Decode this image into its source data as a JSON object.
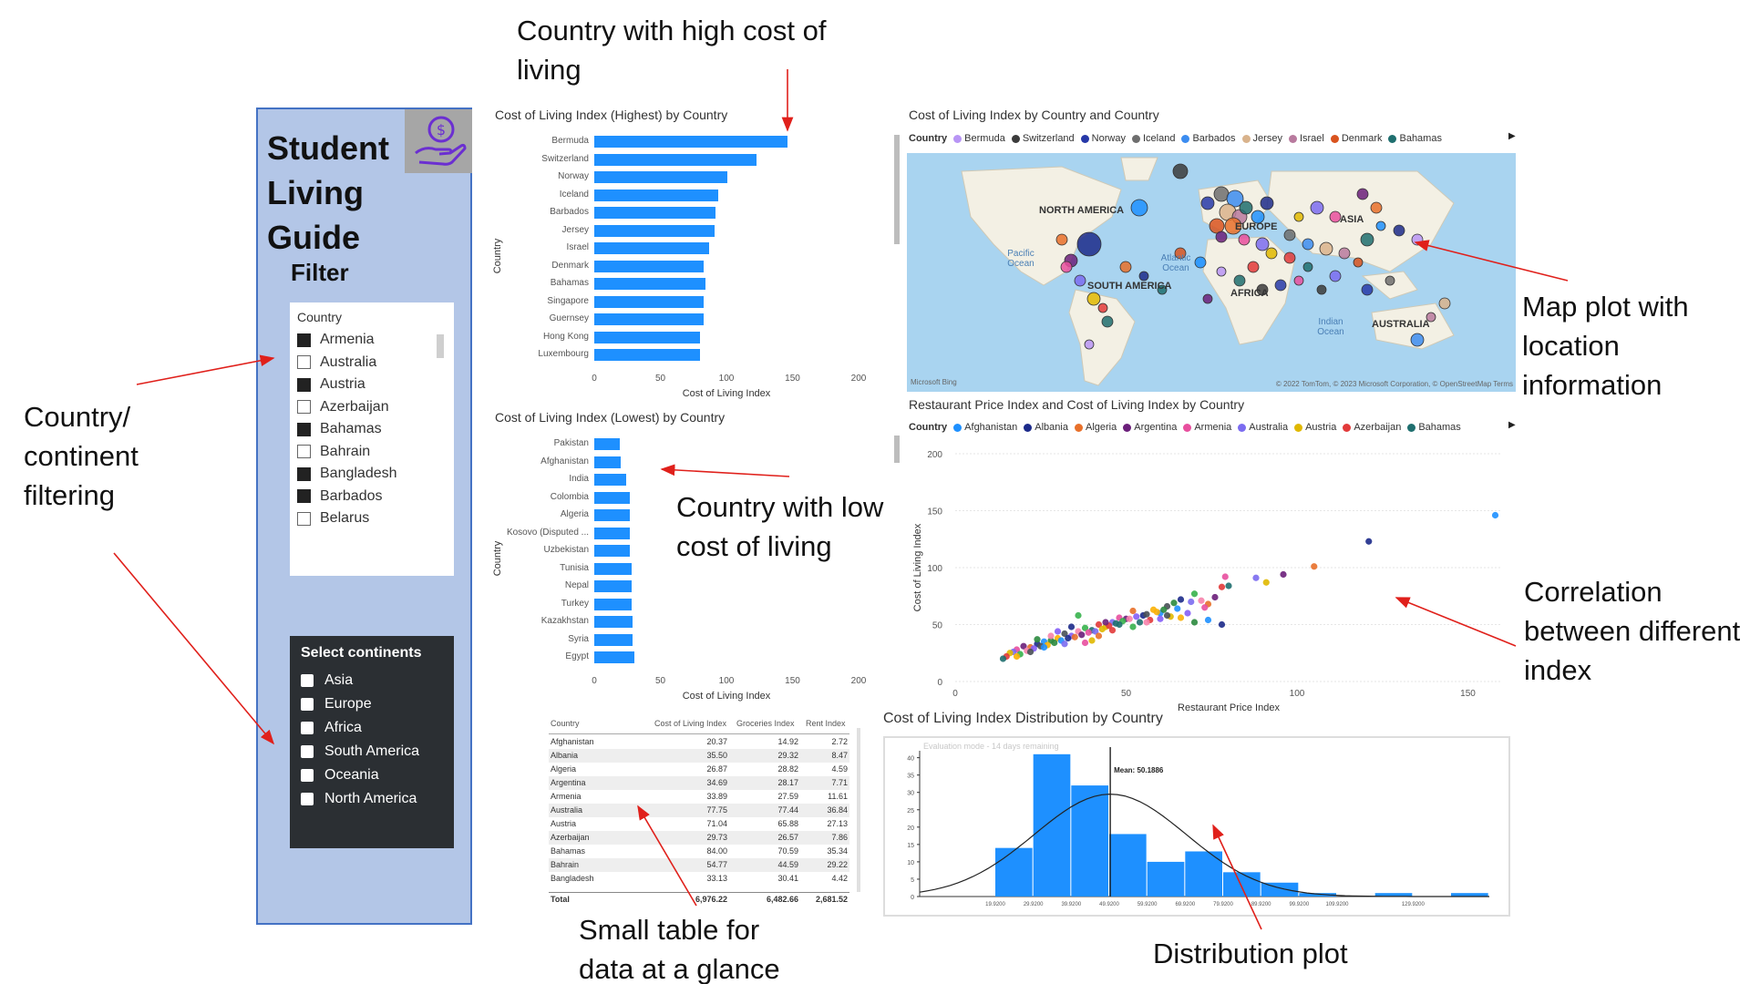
{
  "sidebar": {
    "title": "Student Living Guide",
    "logo_icon": "hand-coin-icon",
    "filter_heading": "Filter",
    "country_slicer": {
      "title": "Country",
      "items": [
        {
          "label": "Armenia",
          "checked": true
        },
        {
          "label": "Australia",
          "checked": false
        },
        {
          "label": "Austria",
          "checked": true
        },
        {
          "label": "Azerbaijan",
          "checked": false
        },
        {
          "label": "Bahamas",
          "checked": true
        },
        {
          "label": "Bahrain",
          "checked": false
        },
        {
          "label": "Bangladesh",
          "checked": true
        },
        {
          "label": "Barbados",
          "checked": true
        },
        {
          "label": "Belarus",
          "checked": false
        }
      ]
    },
    "continent_slicer": {
      "title": "Select continents",
      "items": [
        "Asia",
        "Europe",
        "Africa",
        "South America",
        "Oceania",
        "North America"
      ]
    }
  },
  "annotations": {
    "high_cost": "Country with high cost of living",
    "low_cost": "Country with low cost of living",
    "filtering": "Country/ continent filtering",
    "map": "Map plot with location information",
    "correlation": "Correlation between different index",
    "table": "Small table for data at a glance",
    "distribution": "Distribution plot"
  },
  "map": {
    "title": "Cost of Living Index by Country and Country",
    "legend_label": "Country",
    "legend": [
      {
        "name": "Bermuda",
        "color": "#b895f5"
      },
      {
        "name": "Switzerland",
        "color": "#3b3b3b"
      },
      {
        "name": "Norway",
        "color": "#2638a8"
      },
      {
        "name": "Iceland",
        "color": "#6e6e6e"
      },
      {
        "name": "Barbados",
        "color": "#3b8cf0"
      },
      {
        "name": "Jersey",
        "color": "#d9b38c"
      },
      {
        "name": "Israel",
        "color": "#b87a9e"
      },
      {
        "name": "Denmark",
        "color": "#d9531e"
      },
      {
        "name": "Bahamas",
        "color": "#1f6f6f"
      }
    ],
    "labels": {
      "north_america": "NORTH AMERICA",
      "south_america": "SOUTH AMERICA",
      "europe": "EUROPE",
      "africa": "AFRICA",
      "asia": "ASIA",
      "australia": "AUSTRALIA",
      "pacific": "Pacific Ocean",
      "atlantic": "Atlantic Ocean",
      "indian": "Indian Ocean"
    },
    "attribution_left": "Microsoft Bing",
    "attribution_right": "© 2022 TomTom, © 2023 Microsoft Corporation, © OpenStreetMap  Terms"
  },
  "scatter_legend": {
    "label": "Country",
    "items": [
      {
        "name": "Afghanistan",
        "color": "#1e90ff"
      },
      {
        "name": "Albania",
        "color": "#1c2a8a"
      },
      {
        "name": "Algeria",
        "color": "#e8702a"
      },
      {
        "name": "Argentina",
        "color": "#6b1f7a"
      },
      {
        "name": "Armenia",
        "color": "#e84f9e"
      },
      {
        "name": "Australia",
        "color": "#7b6cf0"
      },
      {
        "name": "Austria",
        "color": "#e0b800"
      },
      {
        "name": "Azerbaijan",
        "color": "#e23a3a"
      },
      {
        "name": "Bahamas",
        "color": "#1f6f6f"
      }
    ]
  },
  "table": {
    "headers": [
      "Country",
      "Cost of Living Index",
      "Groceries Index",
      "Rent Index"
    ],
    "rows": [
      [
        "Afghanistan",
        "20.37",
        "14.92",
        "2.72"
      ],
      [
        "Albania",
        "35.50",
        "29.32",
        "8.47"
      ],
      [
        "Algeria",
        "26.87",
        "28.82",
        "4.59"
      ],
      [
        "Argentina",
        "34.69",
        "28.17",
        "7.71"
      ],
      [
        "Armenia",
        "33.89",
        "27.59",
        "11.61"
      ],
      [
        "Australia",
        "77.75",
        "77.44",
        "36.84"
      ],
      [
        "Austria",
        "71.04",
        "65.88",
        "27.13"
      ],
      [
        "Azerbaijan",
        "29.73",
        "26.57",
        "7.86"
      ],
      [
        "Bahamas",
        "84.00",
        "70.59",
        "35.34"
      ],
      [
        "Bahrain",
        "54.77",
        "44.59",
        "29.22"
      ],
      [
        "Bangladesh",
        "33.13",
        "30.41",
        "4.42"
      ]
    ],
    "total": [
      "Total",
      "6,976.22",
      "6,482.66",
      "2,681.52"
    ]
  },
  "histogram_meta": {
    "watermark": "Evaluation mode - 14 days remaining",
    "mean_label": "Mean: 50.1886"
  },
  "chart_data": [
    {
      "type": "bar",
      "orientation": "horizontal",
      "title": "Cost of Living Index (Highest) by Country",
      "categories": [
        "Bermuda",
        "Switzerland",
        "Norway",
        "Iceland",
        "Barbados",
        "Jersey",
        "Israel",
        "Denmark",
        "Bahamas",
        "Singapore",
        "Guernsey",
        "Hong Kong",
        "Luxembourg"
      ],
      "values": [
        146,
        123,
        101,
        94,
        92,
        91,
        87,
        83,
        84,
        83,
        83,
        80,
        80
      ],
      "xlabel": "Cost of Living Index",
      "ylabel": "Country",
      "xlim": [
        0,
        200
      ],
      "xticks": [
        "0",
        "50",
        "100",
        "150",
        "200"
      ]
    },
    {
      "type": "bar",
      "orientation": "horizontal",
      "title": "Cost of Living Index (Lowest) by Country",
      "categories": [
        "Pakistan",
        "Afghanistan",
        "India",
        "Colombia",
        "Algeria",
        "Kosovo (Disputed ...",
        "Uzbekistan",
        "Tunisia",
        "Nepal",
        "Turkey",
        "Kazakhstan",
        "Syria",
        "Egypt"
      ],
      "values": [
        19,
        20,
        24,
        27,
        27,
        27,
        27,
        28,
        28,
        28,
        29,
        29,
        30
      ],
      "xlabel": "Cost of Living Index",
      "ylabel": "Country",
      "xlim": [
        0,
        200
      ],
      "xticks": [
        "0",
        "50",
        "100",
        "150",
        "200"
      ]
    },
    {
      "type": "scatter",
      "title": "Restaurant Price Index and Cost of Living Index by Country",
      "xlabel": "Restaurant Price Index",
      "ylabel": "Cost of Living Index",
      "xlim": [
        0,
        160
      ],
      "ylim": [
        0,
        200
      ],
      "xticks": [
        "0",
        "50",
        "100",
        "150"
      ],
      "yticks": [
        "0",
        "50",
        "100",
        "150",
        "200"
      ],
      "points": [
        [
          158,
          146
        ],
        [
          121,
          123
        ],
        [
          105,
          101
        ],
        [
          96,
          94
        ],
        [
          79,
          92
        ],
        [
          88,
          91
        ],
        [
          91,
          87
        ],
        [
          78,
          83
        ],
        [
          80,
          84
        ],
        [
          70,
          77
        ],
        [
          72,
          71
        ],
        [
          68,
          60
        ],
        [
          62,
          66
        ],
        [
          58,
          63
        ],
        [
          64,
          69
        ],
        [
          60,
          60
        ],
        [
          55,
          58
        ],
        [
          52,
          62
        ],
        [
          50,
          55
        ],
        [
          48,
          56
        ],
        [
          46,
          52
        ],
        [
          44,
          48
        ],
        [
          42,
          50
        ],
        [
          40,
          45
        ],
        [
          38,
          47
        ],
        [
          36,
          44
        ],
        [
          34,
          40
        ],
        [
          32,
          42
        ],
        [
          30,
          38
        ],
        [
          28,
          36
        ],
        [
          26,
          35
        ],
        [
          24,
          33
        ],
        [
          22,
          30
        ],
        [
          20,
          31
        ],
        [
          18,
          28
        ],
        [
          17,
          26
        ],
        [
          16,
          25
        ],
        [
          15,
          22
        ],
        [
          14,
          20
        ],
        [
          19,
          24
        ],
        [
          21,
          27
        ],
        [
          23,
          29
        ],
        [
          25,
          31
        ],
        [
          27,
          32
        ],
        [
          29,
          34
        ],
        [
          31,
          36
        ],
        [
          33,
          38
        ],
        [
          35,
          39
        ],
        [
          37,
          41
        ],
        [
          39,
          43
        ],
        [
          41,
          44
        ],
        [
          43,
          46
        ],
        [
          45,
          49
        ],
        [
          47,
          51
        ],
        [
          49,
          53
        ],
        [
          51,
          55
        ],
        [
          53,
          57
        ],
        [
          56,
          59
        ],
        [
          59,
          61
        ],
        [
          61,
          63
        ],
        [
          65,
          64
        ],
        [
          66,
          72
        ],
        [
          74,
          68
        ],
        [
          76,
          74
        ],
        [
          73,
          65
        ],
        [
          69,
          70
        ],
        [
          63,
          57
        ],
        [
          57,
          54
        ],
        [
          54,
          52
        ],
        [
          36,
          58
        ],
        [
          28,
          40
        ],
        [
          30,
          44
        ],
        [
          22,
          26
        ],
        [
          18,
          22
        ],
        [
          24,
          37
        ],
        [
          26,
          30
        ],
        [
          34,
          48
        ],
        [
          42,
          40
        ],
        [
          44,
          52
        ],
        [
          38,
          34
        ],
        [
          32,
          33
        ],
        [
          40,
          36
        ],
        [
          46,
          45
        ],
        [
          48,
          50
        ],
        [
          52,
          48
        ],
        [
          56,
          52
        ],
        [
          60,
          55
        ],
        [
          62,
          58
        ],
        [
          66,
          56
        ],
        [
          70,
          52
        ],
        [
          74,
          54
        ],
        [
          78,
          50
        ]
      ]
    },
    {
      "type": "bar",
      "subtype": "histogram",
      "title": "Cost of Living Index Distribution by Country",
      "bin_labels": [
        "19.9200",
        "29.9200",
        "39.9200",
        "49.9200",
        "59.9200",
        "69.9200",
        "79.9200",
        "89.9200",
        "99.9200",
        "109.9200",
        "129.9200"
      ],
      "bin_starts": [
        19.92,
        29.92,
        39.92,
        49.92,
        59.92,
        69.92,
        79.92,
        89.92,
        99.92,
        109.92,
        119.92,
        129.92,
        139.92
      ],
      "counts": [
        14,
        41,
        32,
        18,
        10,
        13,
        7,
        4,
        1,
        0,
        1,
        0,
        1
      ],
      "ylim": [
        0,
        42
      ],
      "yticks": [
        "0",
        "5",
        "10",
        "15",
        "20",
        "25",
        "30",
        "35",
        "40"
      ],
      "mean": 50.1886,
      "xlim": [
        0,
        150
      ]
    }
  ]
}
